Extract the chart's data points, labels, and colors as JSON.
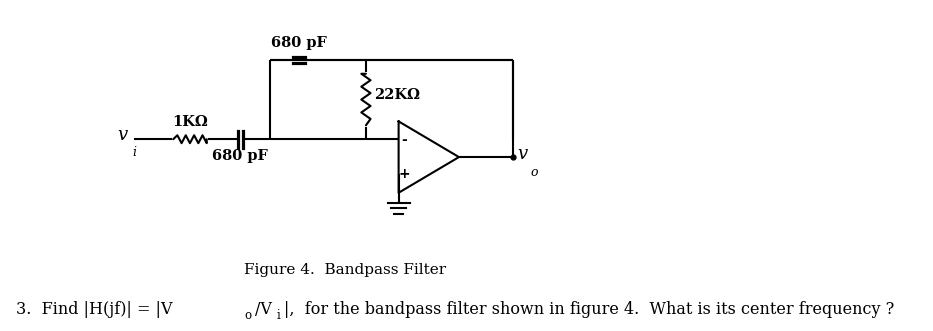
{
  "bg_color": "#ffffff",
  "line_color": "#000000",
  "fig_caption": "Figure 4.  Bandpass Filter",
  "label_680pF_top": "680 pF",
  "label_22K": "22KΩ",
  "label_1K": "1KΩ",
  "label_680pF_bot": "680 pF",
  "label_vi": "v",
  "label_vi_sub": "i",
  "label_vo": "v",
  "label_vo_sub": "o",
  "label_minus": "-",
  "label_plus": "+",
  "caption_fontsize": 11,
  "question_fontsize": 11.5,
  "component_fontsize": 10.5,
  "vi_fontsize": 13,
  "vo_fontsize": 13,
  "question_line": "3.  Find |H(jf)| = |V",
  "question_sub1": "o",
  "question_mid": "/V",
  "question_sub2": "i",
  "question_end": "|,  for the bandpass filter shown in figure 4.  What is its center frequency ?"
}
